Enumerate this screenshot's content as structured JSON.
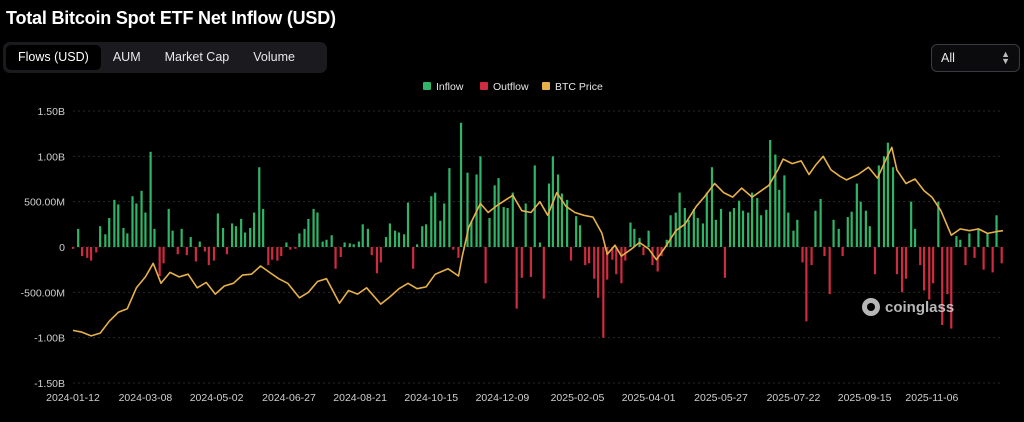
{
  "header": {
    "title": "Total Bitcoin Spot ETF Net Inflow (USD)"
  },
  "tabs": [
    {
      "label": "Flows (USD)",
      "active": true
    },
    {
      "label": "AUM",
      "active": false
    },
    {
      "label": "Market Cap",
      "active": false
    },
    {
      "label": "Volume",
      "active": false
    }
  ],
  "range_select": {
    "value": "All"
  },
  "watermark": {
    "text": "coinglass"
  },
  "colors": {
    "inflow": "#2fb567",
    "outflow": "#d02b40",
    "btc_price": "#e6b04a",
    "grid": "#2a2a2a",
    "axis_text": "#cfcfcf"
  },
  "chart_data": {
    "type": "bar",
    "title": "Total Bitcoin Spot ETF Net Inflow (USD)",
    "legend": {
      "placement": "top-center",
      "entries": [
        "Inflow",
        "Outflow",
        "BTC Price"
      ]
    },
    "grid": true,
    "ylim": [
      -1500000000,
      1500000000
    ],
    "yticks": [
      {
        "value": 1500000000,
        "label": "1.50B"
      },
      {
        "value": 1000000000,
        "label": "1.00B"
      },
      {
        "value": 500000000,
        "label": "500.00M"
      },
      {
        "value": 0,
        "label": "0"
      },
      {
        "value": -500000000,
        "label": "-500.00M"
      },
      {
        "value": -1000000000,
        "label": "-1.00B"
      },
      {
        "value": -1500000000,
        "label": "-1.50B"
      }
    ],
    "xticks": [
      "2024-01-12",
      "2024-03-08",
      "2024-05-02",
      "2024-06-27",
      "2024-08-21",
      "2024-10-15",
      "2024-12-09",
      "2025-02-05",
      "2025-04-01",
      "2025-05-27",
      "2025-07-22",
      "2025-09-15",
      "2025-11-06"
    ],
    "x_range": [
      "2024-01-12",
      "2025-12-31"
    ],
    "flows": [
      [
        "2024-01-12",
        -20000000
      ],
      [
        "2024-01-16",
        200000000
      ],
      [
        "2024-01-19",
        -100000000
      ],
      [
        "2024-01-23",
        -120000000
      ],
      [
        "2024-01-26",
        -150000000
      ],
      [
        "2024-01-30",
        -60000000
      ],
      [
        "2024-02-02",
        230000000
      ],
      [
        "2024-02-06",
        140000000
      ],
      [
        "2024-02-09",
        320000000
      ],
      [
        "2024-02-13",
        520000000
      ],
      [
        "2024-02-16",
        470000000
      ],
      [
        "2024-02-20",
        210000000
      ],
      [
        "2024-02-23",
        150000000
      ],
      [
        "2024-02-27",
        560000000
      ],
      [
        "2024-03-01",
        480000000
      ],
      [
        "2024-03-05",
        620000000
      ],
      [
        "2024-03-08",
        380000000
      ],
      [
        "2024-03-12",
        1050000000
      ],
      [
        "2024-03-15",
        200000000
      ],
      [
        "2024-03-19",
        -320000000
      ],
      [
        "2024-03-22",
        -180000000
      ],
      [
        "2024-03-26",
        420000000
      ],
      [
        "2024-03-29",
        180000000
      ],
      [
        "2024-04-02",
        -80000000
      ],
      [
        "2024-04-05",
        200000000
      ],
      [
        "2024-04-09",
        -90000000
      ],
      [
        "2024-04-12",
        110000000
      ],
      [
        "2024-04-16",
        -160000000
      ],
      [
        "2024-04-19",
        60000000
      ],
      [
        "2024-04-23",
        -50000000
      ],
      [
        "2024-04-26",
        -200000000
      ],
      [
        "2024-04-30",
        -150000000
      ],
      [
        "2024-05-03",
        370000000
      ],
      [
        "2024-05-07",
        210000000
      ],
      [
        "2024-05-10",
        -80000000
      ],
      [
        "2024-05-14",
        260000000
      ],
      [
        "2024-05-17",
        230000000
      ],
      [
        "2024-05-21",
        310000000
      ],
      [
        "2024-05-24",
        160000000
      ],
      [
        "2024-05-28",
        210000000
      ],
      [
        "2024-05-31",
        380000000
      ],
      [
        "2024-06-04",
        880000000
      ],
      [
        "2024-06-07",
        420000000
      ],
      [
        "2024-06-11",
        -200000000
      ],
      [
        "2024-06-14",
        -140000000
      ],
      [
        "2024-06-18",
        -150000000
      ],
      [
        "2024-06-21",
        -100000000
      ],
      [
        "2024-06-25",
        50000000
      ],
      [
        "2024-06-28",
        -30000000
      ],
      [
        "2024-07-02",
        -20000000
      ],
      [
        "2024-07-05",
        150000000
      ],
      [
        "2024-07-09",
        200000000
      ],
      [
        "2024-07-12",
        310000000
      ],
      [
        "2024-07-16",
        420000000
      ],
      [
        "2024-07-19",
        380000000
      ],
      [
        "2024-07-23",
        60000000
      ],
      [
        "2024-07-26",
        80000000
      ],
      [
        "2024-07-30",
        130000000
      ],
      [
        "2024-08-02",
        -240000000
      ],
      [
        "2024-08-06",
        -110000000
      ],
      [
        "2024-08-09",
        50000000
      ],
      [
        "2024-08-13",
        40000000
      ],
      [
        "2024-08-16",
        30000000
      ],
      [
        "2024-08-20",
        60000000
      ],
      [
        "2024-08-23",
        250000000
      ],
      [
        "2024-08-27",
        200000000
      ],
      [
        "2024-08-30",
        -90000000
      ],
      [
        "2024-09-03",
        -290000000
      ],
      [
        "2024-09-06",
        -170000000
      ],
      [
        "2024-09-10",
        110000000
      ],
      [
        "2024-09-13",
        260000000
      ],
      [
        "2024-09-17",
        180000000
      ],
      [
        "2024-09-20",
        160000000
      ],
      [
        "2024-09-24",
        140000000
      ],
      [
        "2024-09-27",
        490000000
      ],
      [
        "2024-10-01",
        -240000000
      ],
      [
        "2024-10-04",
        30000000
      ],
      [
        "2024-10-08",
        230000000
      ],
      [
        "2024-10-11",
        250000000
      ],
      [
        "2024-10-15",
        560000000
      ],
      [
        "2024-10-18",
        600000000
      ],
      [
        "2024-10-22",
        290000000
      ],
      [
        "2024-10-25",
        480000000
      ],
      [
        "2024-10-29",
        870000000
      ],
      [
        "2024-11-01",
        -30000000
      ],
      [
        "2024-11-05",
        -120000000
      ],
      [
        "2024-11-07",
        1370000000
      ],
      [
        "2024-11-12",
        820000000
      ],
      [
        "2024-11-15",
        280000000
      ],
      [
        "2024-11-19",
        800000000
      ],
      [
        "2024-11-22",
        1000000000
      ],
      [
        "2024-11-26",
        -400000000
      ],
      [
        "2024-11-29",
        320000000
      ],
      [
        "2024-12-03",
        680000000
      ],
      [
        "2024-12-06",
        760000000
      ],
      [
        "2024-12-10",
        440000000
      ],
      [
        "2024-12-13",
        430000000
      ],
      [
        "2024-12-17",
        600000000
      ],
      [
        "2024-12-20",
        -680000000
      ],
      [
        "2024-12-24",
        -340000000
      ],
      [
        "2024-12-27",
        480000000
      ],
      [
        "2024-12-31",
        -330000000
      ],
      [
        "2025-01-03",
        900000000
      ],
      [
        "2025-01-07",
        50000000
      ],
      [
        "2025-01-10",
        -570000000
      ],
      [
        "2025-01-14",
        700000000
      ],
      [
        "2025-01-17",
        1000000000
      ],
      [
        "2025-01-21",
        800000000
      ],
      [
        "2025-01-24",
        590000000
      ],
      [
        "2025-01-28",
        520000000
      ],
      [
        "2025-01-31",
        -150000000
      ],
      [
        "2025-02-04",
        340000000
      ],
      [
        "2025-02-07",
        240000000
      ],
      [
        "2025-02-11",
        -200000000
      ],
      [
        "2025-02-14",
        -180000000
      ],
      [
        "2025-02-18",
        -350000000
      ],
      [
        "2025-02-21",
        -560000000
      ],
      [
        "2025-02-25",
        -1000000000
      ],
      [
        "2025-02-28",
        -360000000
      ],
      [
        "2025-03-04",
        -140000000
      ],
      [
        "2025-03-07",
        -300000000
      ],
      [
        "2025-03-11",
        -400000000
      ],
      [
        "2025-03-14",
        -150000000
      ],
      [
        "2025-03-18",
        270000000
      ],
      [
        "2025-03-21",
        200000000
      ],
      [
        "2025-03-25",
        100000000
      ],
      [
        "2025-03-28",
        -90000000
      ],
      [
        "2025-04-01",
        180000000
      ],
      [
        "2025-04-04",
        -200000000
      ],
      [
        "2025-04-08",
        -270000000
      ],
      [
        "2025-04-11",
        -100000000
      ],
      [
        "2025-04-15",
        80000000
      ],
      [
        "2025-04-18",
        350000000
      ],
      [
        "2025-04-22",
        380000000
      ],
      [
        "2025-04-25",
        600000000
      ],
      [
        "2025-04-29",
        430000000
      ],
      [
        "2025-05-02",
        300000000
      ],
      [
        "2025-05-06",
        420000000
      ],
      [
        "2025-05-09",
        320000000
      ],
      [
        "2025-05-13",
        260000000
      ],
      [
        "2025-05-16",
        600000000
      ],
      [
        "2025-05-20",
        880000000
      ],
      [
        "2025-05-23",
        300000000
      ],
      [
        "2025-05-27",
        420000000
      ],
      [
        "2025-05-30",
        -340000000
      ],
      [
        "2025-06-03",
        390000000
      ],
      [
        "2025-06-06",
        430000000
      ],
      [
        "2025-06-10",
        510000000
      ],
      [
        "2025-06-13",
        400000000
      ],
      [
        "2025-06-17",
        380000000
      ],
      [
        "2025-06-20",
        600000000
      ],
      [
        "2025-06-24",
        540000000
      ],
      [
        "2025-06-27",
        350000000
      ],
      [
        "2025-07-01",
        410000000
      ],
      [
        "2025-07-04",
        1180000000
      ],
      [
        "2025-07-08",
        1020000000
      ],
      [
        "2025-07-11",
        630000000
      ],
      [
        "2025-07-15",
        790000000
      ],
      [
        "2025-07-18",
        380000000
      ],
      [
        "2025-07-22",
        180000000
      ],
      [
        "2025-07-25",
        300000000
      ],
      [
        "2025-07-29",
        -170000000
      ],
      [
        "2025-08-01",
        -820000000
      ],
      [
        "2025-08-05",
        -200000000
      ],
      [
        "2025-08-08",
        400000000
      ],
      [
        "2025-08-12",
        530000000
      ],
      [
        "2025-08-15",
        -100000000
      ],
      [
        "2025-08-19",
        -520000000
      ],
      [
        "2025-08-22",
        300000000
      ],
      [
        "2025-08-26",
        200000000
      ],
      [
        "2025-08-29",
        -100000000
      ],
      [
        "2025-09-02",
        330000000
      ],
      [
        "2025-09-05",
        390000000
      ],
      [
        "2025-09-09",
        700000000
      ],
      [
        "2025-09-12",
        500000000
      ],
      [
        "2025-09-16",
        400000000
      ],
      [
        "2025-09-19",
        230000000
      ],
      [
        "2025-09-23",
        -300000000
      ],
      [
        "2025-09-26",
        900000000
      ],
      [
        "2025-09-30",
        1000000000
      ],
      [
        "2025-10-03",
        1150000000
      ],
      [
        "2025-10-07",
        880000000
      ],
      [
        "2025-10-10",
        -300000000
      ],
      [
        "2025-10-14",
        -500000000
      ],
      [
        "2025-10-17",
        -350000000
      ],
      [
        "2025-10-21",
        500000000
      ],
      [
        "2025-10-24",
        200000000
      ],
      [
        "2025-10-28",
        -200000000
      ],
      [
        "2025-10-31",
        -480000000
      ],
      [
        "2025-11-04",
        -580000000
      ],
      [
        "2025-11-07",
        -400000000
      ],
      [
        "2025-11-11",
        500000000
      ],
      [
        "2025-11-14",
        -860000000
      ],
      [
        "2025-11-18",
        -520000000
      ],
      [
        "2025-11-21",
        -900000000
      ],
      [
        "2025-11-25",
        120000000
      ],
      [
        "2025-11-28",
        80000000
      ],
      [
        "2025-12-02",
        -200000000
      ],
      [
        "2025-12-05",
        150000000
      ],
      [
        "2025-12-09",
        -120000000
      ],
      [
        "2025-12-12",
        200000000
      ],
      [
        "2025-12-16",
        -250000000
      ],
      [
        "2025-12-19",
        160000000
      ],
      [
        "2025-12-23",
        -280000000
      ],
      [
        "2025-12-26",
        350000000
      ],
      [
        "2025-12-30",
        -180000000
      ]
    ],
    "btc_price_relative": [
      [
        "2024-01-12",
        -0.92
      ],
      [
        "2024-01-19",
        -0.94
      ],
      [
        "2024-01-26",
        -0.98
      ],
      [
        "2024-02-02",
        -0.95
      ],
      [
        "2024-02-09",
        -0.82
      ],
      [
        "2024-02-16",
        -0.72
      ],
      [
        "2024-02-23",
        -0.68
      ],
      [
        "2024-03-01",
        -0.45
      ],
      [
        "2024-03-08",
        -0.33
      ],
      [
        "2024-03-14",
        -0.18
      ],
      [
        "2024-03-20",
        -0.4
      ],
      [
        "2024-03-27",
        -0.28
      ],
      [
        "2024-04-03",
        -0.33
      ],
      [
        "2024-04-10",
        -0.3
      ],
      [
        "2024-04-17",
        -0.45
      ],
      [
        "2024-04-24",
        -0.39
      ],
      [
        "2024-05-01",
        -0.52
      ],
      [
        "2024-05-08",
        -0.43
      ],
      [
        "2024-05-15",
        -0.4
      ],
      [
        "2024-05-22",
        -0.31
      ],
      [
        "2024-05-29",
        -0.3
      ],
      [
        "2024-06-05",
        -0.21
      ],
      [
        "2024-06-12",
        -0.28
      ],
      [
        "2024-06-19",
        -0.35
      ],
      [
        "2024-06-26",
        -0.4
      ],
      [
        "2024-07-05",
        -0.56
      ],
      [
        "2024-07-12",
        -0.5
      ],
      [
        "2024-07-19",
        -0.38
      ],
      [
        "2024-07-26",
        -0.35
      ],
      [
        "2024-08-05",
        -0.62
      ],
      [
        "2024-08-12",
        -0.48
      ],
      [
        "2024-08-19",
        -0.52
      ],
      [
        "2024-08-26",
        -0.45
      ],
      [
        "2024-09-06",
        -0.63
      ],
      [
        "2024-09-13",
        -0.55
      ],
      [
        "2024-09-20",
        -0.46
      ],
      [
        "2024-09-27",
        -0.4
      ],
      [
        "2024-10-04",
        -0.46
      ],
      [
        "2024-10-11",
        -0.44
      ],
      [
        "2024-10-18",
        -0.3
      ],
      [
        "2024-10-28",
        -0.24
      ],
      [
        "2024-11-05",
        -0.32
      ],
      [
        "2024-11-08",
        -0.1
      ],
      [
        "2024-11-13",
        0.22
      ],
      [
        "2024-11-22",
        0.48
      ],
      [
        "2024-11-28",
        0.38
      ],
      [
        "2024-12-05",
        0.46
      ],
      [
        "2024-12-17",
        0.57
      ],
      [
        "2024-12-24",
        0.4
      ],
      [
        "2024-12-31",
        0.38
      ],
      [
        "2025-01-07",
        0.5
      ],
      [
        "2025-01-13",
        0.35
      ],
      [
        "2025-01-20",
        0.6
      ],
      [
        "2025-01-27",
        0.45
      ],
      [
        "2025-02-03",
        0.38
      ],
      [
        "2025-02-10",
        0.35
      ],
      [
        "2025-02-17",
        0.33
      ],
      [
        "2025-02-24",
        0.15
      ],
      [
        "2025-02-28",
        -0.08
      ],
      [
        "2025-03-06",
        0.02
      ],
      [
        "2025-03-11",
        -0.1
      ],
      [
        "2025-03-18",
        -0.03
      ],
      [
        "2025-03-25",
        0.05
      ],
      [
        "2025-04-01",
        -0.02
      ],
      [
        "2025-04-07",
        -0.14
      ],
      [
        "2025-04-14",
        0.0
      ],
      [
        "2025-04-22",
        0.18
      ],
      [
        "2025-04-29",
        0.25
      ],
      [
        "2025-05-08",
        0.45
      ],
      [
        "2025-05-14",
        0.55
      ],
      [
        "2025-05-22",
        0.7
      ],
      [
        "2025-05-29",
        0.6
      ],
      [
        "2025-06-05",
        0.55
      ],
      [
        "2025-06-12",
        0.65
      ],
      [
        "2025-06-20",
        0.55
      ],
      [
        "2025-06-27",
        0.62
      ],
      [
        "2025-07-03",
        0.68
      ],
      [
        "2025-07-10",
        0.85
      ],
      [
        "2025-07-14",
        0.97
      ],
      [
        "2025-07-21",
        0.92
      ],
      [
        "2025-07-28",
        0.95
      ],
      [
        "2025-08-03",
        0.8
      ],
      [
        "2025-08-08",
        0.9
      ],
      [
        "2025-08-14",
        1.0
      ],
      [
        "2025-08-20",
        0.85
      ],
      [
        "2025-08-27",
        0.78
      ],
      [
        "2025-09-01",
        0.74
      ],
      [
        "2025-09-10",
        0.8
      ],
      [
        "2025-09-18",
        0.88
      ],
      [
        "2025-09-25",
        0.76
      ],
      [
        "2025-10-01",
        0.95
      ],
      [
        "2025-10-06",
        1.1
      ],
      [
        "2025-10-10",
        0.85
      ],
      [
        "2025-10-17",
        0.7
      ],
      [
        "2025-10-24",
        0.75
      ],
      [
        "2025-10-31",
        0.62
      ],
      [
        "2025-11-06",
        0.55
      ],
      [
        "2025-11-13",
        0.4
      ],
      [
        "2025-11-21",
        0.13
      ],
      [
        "2025-11-28",
        0.2
      ],
      [
        "2025-12-05",
        0.18
      ],
      [
        "2025-12-12",
        0.2
      ],
      [
        "2025-12-19",
        0.15
      ],
      [
        "2025-12-26",
        0.17
      ],
      [
        "2025-12-31",
        0.18
      ]
    ]
  }
}
